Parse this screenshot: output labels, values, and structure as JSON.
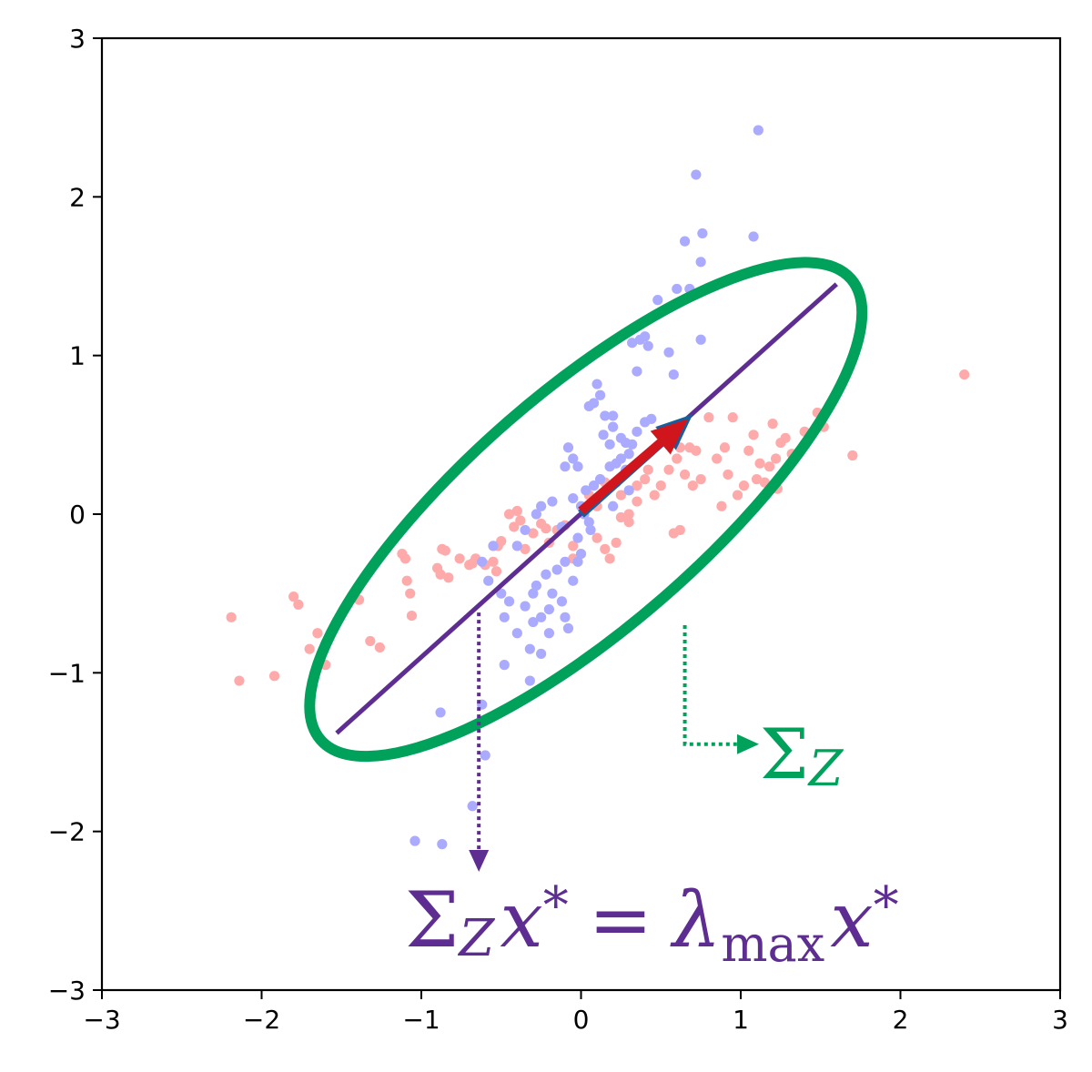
{
  "chart_data": {
    "type": "scatter",
    "xlim": [
      -3,
      3
    ],
    "ylim": [
      -3,
      3
    ],
    "xticks": [
      "−3",
      "−2",
      "−1",
      "0",
      "1",
      "2",
      "3"
    ],
    "yticks": [
      "−3",
      "−2",
      "−1",
      "0",
      "1",
      "2",
      "3"
    ],
    "xtick_values": [
      -3,
      -2,
      -1,
      0,
      1,
      2,
      3
    ],
    "ytick_values": [
      -3,
      -2,
      -1,
      0,
      1,
      2,
      3
    ],
    "grid": false,
    "colors": {
      "series_a": "#ffaaaa",
      "series_b": "#aaaaff",
      "ellipse": "#00a15a",
      "principal_axis": "#5e2d91",
      "arrow_red": "#d0161c",
      "arrow_blue": "#155f9e"
    },
    "series": [
      {
        "color": "#ffaaaa",
        "points": [
          [
            -2.19,
            -0.65
          ],
          [
            -2.14,
            -1.05
          ],
          [
            -1.92,
            -1.02
          ],
          [
            -1.8,
            -0.52
          ],
          [
            -1.77,
            -0.57
          ],
          [
            -1.7,
            -0.85
          ],
          [
            -1.65,
            -0.75
          ],
          [
            -1.39,
            -0.54
          ],
          [
            -1.32,
            -0.8
          ],
          [
            -1.26,
            -0.84
          ],
          [
            -1.12,
            -0.25
          ],
          [
            -1.1,
            -0.28
          ],
          [
            -1.09,
            -0.42
          ],
          [
            -1.07,
            -0.5
          ],
          [
            -1.06,
            -0.64
          ],
          [
            -0.9,
            -0.34
          ],
          [
            -0.88,
            -0.38
          ],
          [
            -0.87,
            -0.22
          ],
          [
            -0.85,
            -0.23
          ],
          [
            -0.83,
            -0.4
          ],
          [
            -0.76,
            -0.28
          ],
          [
            -0.7,
            -0.32
          ],
          [
            -0.68,
            -0.31
          ],
          [
            -0.66,
            -0.28
          ],
          [
            -0.6,
            -0.32
          ],
          [
            -0.53,
            -0.36
          ],
          [
            -0.52,
            -0.2
          ],
          [
            -0.5,
            -0.17
          ],
          [
            -0.45,
            0.0
          ],
          [
            -0.42,
            -0.08
          ],
          [
            -0.4,
            0.02
          ],
          [
            -0.38,
            -0.04
          ],
          [
            -0.35,
            -0.22
          ],
          [
            -0.3,
            -0.12
          ],
          [
            -0.25,
            -0.06
          ],
          [
            -0.2,
            -0.18
          ],
          [
            -0.15,
            -0.1
          ],
          [
            -0.1,
            -0.07
          ],
          [
            -0.05,
            -0.28
          ],
          [
            0.05,
            0.12
          ],
          [
            0.1,
            0.05
          ],
          [
            0.15,
            -0.22
          ],
          [
            0.18,
            -0.28
          ],
          [
            0.22,
            -0.18
          ],
          [
            0.25,
            0.12
          ],
          [
            0.3,
            -0.05
          ],
          [
            0.35,
            0.18
          ],
          [
            0.4,
            0.22
          ],
          [
            0.42,
            0.28
          ],
          [
            0.46,
            0.12
          ],
          [
            0.5,
            0.18
          ],
          [
            0.55,
            0.28
          ],
          [
            0.6,
            0.35
          ],
          [
            0.62,
            0.42
          ],
          [
            0.65,
            0.25
          ],
          [
            0.68,
            0.42
          ],
          [
            0.7,
            0.18
          ],
          [
            0.72,
            0.4
          ],
          [
            0.75,
            0.22
          ],
          [
            0.8,
            0.61
          ],
          [
            0.85,
            0.35
          ],
          [
            0.88,
            0.05
          ],
          [
            0.9,
            0.42
          ],
          [
            0.92,
            0.25
          ],
          [
            0.95,
            0.61
          ],
          [
            0.98,
            0.12
          ],
          [
            1.02,
            0.18
          ],
          [
            1.05,
            0.4
          ],
          [
            1.08,
            0.5
          ],
          [
            1.1,
            0.22
          ],
          [
            1.12,
            0.32
          ],
          [
            1.15,
            0.2
          ],
          [
            1.18,
            0.3
          ],
          [
            1.2,
            0.57
          ],
          [
            1.22,
            0.35
          ],
          [
            1.25,
            0.45
          ],
          [
            1.28,
            0.48
          ],
          [
            1.32,
            0.38
          ],
          [
            1.4,
            0.52
          ],
          [
            1.48,
            0.64
          ],
          [
            1.52,
            0.55
          ],
          [
            1.7,
            0.37
          ],
          [
            2.4,
            0.88
          ],
          [
            0.62,
            -0.1
          ],
          [
            0.58,
            -0.12
          ],
          [
            0.3,
            0.0
          ],
          [
            0.25,
            -0.02
          ],
          [
            -0.22,
            -0.09
          ],
          [
            -0.55,
            -0.3
          ],
          [
            0.1,
            -0.15
          ],
          [
            1.23,
            0.16
          ],
          [
            0.35,
            0.08
          ],
          [
            0.15,
            0.2
          ],
          [
            -0.05,
            -0.2
          ],
          [
            -1.6,
            -0.95
          ]
        ]
      },
      {
        "color": "#aaaaff",
        "points": [
          [
            1.11,
            2.42
          ],
          [
            0.72,
            2.14
          ],
          [
            0.76,
            1.77
          ],
          [
            1.08,
            1.75
          ],
          [
            0.65,
            1.72
          ],
          [
            0.75,
            1.59
          ],
          [
            0.68,
            1.42
          ],
          [
            0.6,
            1.42
          ],
          [
            0.48,
            1.35
          ],
          [
            0.37,
            1.1
          ],
          [
            0.4,
            1.12
          ],
          [
            0.42,
            1.06
          ],
          [
            0.32,
            1.08
          ],
          [
            0.75,
            1.1
          ],
          [
            0.55,
            1.02
          ],
          [
            0.58,
            0.88
          ],
          [
            0.35,
            0.9
          ],
          [
            0.1,
            0.82
          ],
          [
            0.12,
            0.75
          ],
          [
            0.08,
            0.7
          ],
          [
            0.05,
            0.68
          ],
          [
            0.15,
            0.62
          ],
          [
            0.2,
            0.62
          ],
          [
            0.14,
            0.5
          ],
          [
            0.2,
            0.55
          ],
          [
            0.25,
            0.48
          ],
          [
            0.28,
            0.45
          ],
          [
            0.32,
            0.44
          ],
          [
            0.4,
            0.58
          ],
          [
            0.3,
            0.38
          ],
          [
            0.25,
            0.35
          ],
          [
            0.22,
            0.32
          ],
          [
            0.18,
            0.3
          ],
          [
            0.12,
            0.22
          ],
          [
            0.08,
            0.18
          ],
          [
            0.03,
            0.15
          ],
          [
            -0.02,
            0.3
          ],
          [
            -0.05,
            0.35
          ],
          [
            -0.08,
            0.42
          ],
          [
            -0.1,
            0.3
          ],
          [
            -0.05,
            0.1
          ],
          [
            0.0,
            0.05
          ],
          [
            0.02,
            0.0
          ],
          [
            0.05,
            -0.05
          ],
          [
            0.06,
            -0.1
          ],
          [
            -0.02,
            -0.15
          ],
          [
            0.1,
            0.1
          ],
          [
            0.2,
            0.05
          ],
          [
            0.22,
            0.2
          ],
          [
            0.3,
            0.15
          ],
          [
            -0.25,
            0.05
          ],
          [
            -0.28,
            0.0
          ],
          [
            -0.35,
            -0.1
          ],
          [
            -0.4,
            -0.2
          ],
          [
            -0.55,
            -0.2
          ],
          [
            -0.62,
            -0.3
          ],
          [
            -0.58,
            -0.42
          ],
          [
            -0.5,
            -0.5
          ],
          [
            -0.45,
            -0.55
          ],
          [
            -0.48,
            -0.65
          ],
          [
            -0.3,
            -0.5
          ],
          [
            -0.28,
            -0.45
          ],
          [
            -0.22,
            -0.38
          ],
          [
            -0.18,
            -0.5
          ],
          [
            -0.12,
            -0.55
          ],
          [
            -0.05,
            -0.42
          ],
          [
            0.0,
            -0.25
          ],
          [
            -0.02,
            -0.3
          ],
          [
            -0.1,
            -0.3
          ],
          [
            -0.15,
            -0.35
          ],
          [
            -0.2,
            -0.6
          ],
          [
            -0.25,
            -0.65
          ],
          [
            -0.3,
            -0.68
          ],
          [
            -0.35,
            -0.58
          ],
          [
            -0.4,
            -0.75
          ],
          [
            -0.32,
            -0.85
          ],
          [
            -0.25,
            -0.88
          ],
          [
            -0.2,
            -0.75
          ],
          [
            -0.1,
            -0.65
          ],
          [
            -0.08,
            -0.72
          ],
          [
            -0.48,
            -0.95
          ],
          [
            -0.32,
            -1.05
          ],
          [
            -0.28,
            -1.12
          ],
          [
            -0.62,
            -1.2
          ],
          [
            -0.88,
            -1.25
          ],
          [
            -0.6,
            -1.52
          ],
          [
            -0.68,
            -1.84
          ],
          [
            -1.04,
            -2.06
          ],
          [
            -0.87,
            -2.08
          ],
          [
            0.44,
            0.6
          ],
          [
            0.28,
            0.28
          ],
          [
            0.18,
            0.44
          ],
          [
            0.35,
            0.52
          ],
          [
            -0.12,
            -0.08
          ],
          [
            -0.18,
            0.08
          ]
        ]
      }
    ],
    "ellipse": {
      "center": [
        0.03,
        0.03
      ],
      "semi_major": 2.2,
      "semi_minor": 0.74,
      "angle_deg": 41
    },
    "principal_axis": {
      "from": [
        -1.53,
        -1.38
      ],
      "to": [
        1.6,
        1.45
      ]
    },
    "arrows": [
      {
        "from": [
          0.0,
          0.0
        ],
        "to": [
          0.7,
          0.63
        ],
        "color": "#155f9e"
      },
      {
        "from": [
          0.0,
          0.02
        ],
        "to": [
          0.67,
          0.6
        ],
        "color": "#d0161c"
      }
    ],
    "pointers": [
      {
        "from": [
          -0.64,
          -0.62
        ],
        "to": [
          -0.64,
          -2.22
        ],
        "color": "#5e2d91"
      },
      {
        "from": [
          0.65,
          -0.7
        ],
        "to": [
          0.65,
          -1.45
        ],
        "then": [
          1.08,
          -1.45
        ],
        "color": "#00a15a"
      }
    ],
    "annotations": {
      "sigma_label": {
        "sigma": "Σ",
        "sub": "Z",
        "color": "#00a15a"
      },
      "eigen_equation": {
        "sigma": "Σ",
        "sub": "Z",
        "x": "x",
        "star": "*",
        "eq": "=",
        "lambda": "λ",
        "lambda_sub": "max",
        "x2": "x",
        "star2": "*",
        "color": "#5e2d91"
      }
    }
  }
}
